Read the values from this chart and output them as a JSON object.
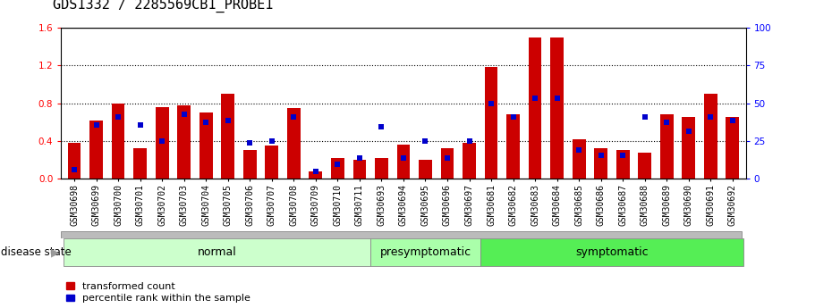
{
  "title": "GDS1332 / 2285569CB1_PROBE1",
  "categories": [
    "GSM30698",
    "GSM30699",
    "GSM30700",
    "GSM30701",
    "GSM30702",
    "GSM30703",
    "GSM30704",
    "GSM30705",
    "GSM30706",
    "GSM30707",
    "GSM30708",
    "GSM30709",
    "GSM30710",
    "GSM30711",
    "GSM30693",
    "GSM30694",
    "GSM30695",
    "GSM30696",
    "GSM30697",
    "GSM30681",
    "GSM30682",
    "GSM30683",
    "GSM30684",
    "GSM30685",
    "GSM30686",
    "GSM30687",
    "GSM30688",
    "GSM30689",
    "GSM30690",
    "GSM30691",
    "GSM30692"
  ],
  "red_values": [
    0.38,
    0.62,
    0.8,
    0.32,
    0.76,
    0.78,
    0.7,
    0.9,
    0.3,
    0.35,
    0.75,
    0.08,
    0.22,
    0.2,
    0.22,
    0.36,
    0.2,
    0.32,
    0.38,
    1.18,
    0.68,
    1.5,
    1.5,
    0.42,
    0.32,
    0.3,
    0.28,
    0.68,
    0.65,
    0.9,
    0.65
  ],
  "blue_values": [
    0.1,
    0.57,
    0.65,
    0.57,
    0.4,
    0.68,
    0.6,
    0.62,
    0.38,
    0.4,
    0.65,
    0.08,
    0.15,
    0.22,
    0.55,
    0.22,
    0.4,
    0.22,
    0.4,
    0.8,
    0.65,
    0.85,
    0.85,
    0.3,
    0.25,
    0.25,
    0.65,
    0.6,
    0.5,
    0.65,
    0.62
  ],
  "group_defs": [
    {
      "name": "normal",
      "start": 0,
      "end": 13,
      "label": "normal",
      "color": "#ccffcc"
    },
    {
      "name": "presymptomatic",
      "start": 14,
      "end": 18,
      "label": "presymptomatic",
      "color": "#aaffaa"
    },
    {
      "name": "symptomatic",
      "start": 19,
      "end": 30,
      "label": "symptomatic",
      "color": "#55ee55"
    }
  ],
  "ylim_left": [
    0,
    1.6
  ],
  "ylim_right": [
    0,
    100
  ],
  "yticks_left": [
    0,
    0.4,
    0.8,
    1.2,
    1.6
  ],
  "yticks_right": [
    0,
    25,
    50,
    75,
    100
  ],
  "bar_color": "#cc0000",
  "dot_color": "#0000cc",
  "title_fontsize": 11,
  "tick_fontsize": 7.0,
  "label_fontsize": 8.5,
  "group_label_fontsize": 9,
  "disease_state_label": "disease state",
  "legend_items": [
    {
      "color": "#cc0000",
      "label": "transformed count"
    },
    {
      "color": "#0000cc",
      "label": "percentile rank within the sample"
    }
  ]
}
